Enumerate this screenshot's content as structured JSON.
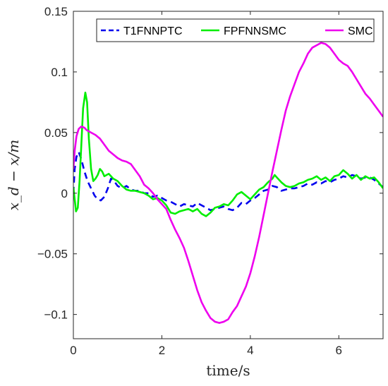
{
  "chart_data": {
    "type": "line",
    "title": "",
    "xlabel": "time/s",
    "ylabel": "x_d − x/m",
    "xlim": [
      0,
      7
    ],
    "ylim": [
      -0.12,
      0.15
    ],
    "xticks": [
      0,
      2,
      4,
      6
    ],
    "xtick_labels": [
      "0",
      "2",
      "4",
      "6"
    ],
    "yticks": [
      -0.1,
      -0.05,
      0,
      0.05,
      0.1,
      0.15
    ],
    "ytick_labels": [
      "−0.1",
      "−0.05",
      "0",
      "0.05",
      "0.1",
      "0.15"
    ],
    "grid": false,
    "legend_position": "top",
    "series": [
      {
        "name": "T1FNNPTC",
        "color": "#0000ee",
        "style": "dashed",
        "points": [
          [
            0,
            0.0
          ],
          [
            0.03,
            0.02
          ],
          [
            0.07,
            0.03
          ],
          [
            0.12,
            0.034
          ],
          [
            0.18,
            0.028
          ],
          [
            0.25,
            0.018
          ],
          [
            0.32,
            0.01
          ],
          [
            0.4,
            0.004
          ],
          [
            0.48,
            -0.002
          ],
          [
            0.55,
            -0.005
          ],
          [
            0.62,
            -0.006
          ],
          [
            0.7,
            -0.003
          ],
          [
            0.78,
            0.004
          ],
          [
            0.85,
            0.012
          ],
          [
            0.92,
            0.01
          ],
          [
            1.0,
            0.006
          ],
          [
            1.1,
            0.004
          ],
          [
            1.2,
            0.006
          ],
          [
            1.3,
            0.003
          ],
          [
            1.4,
            0.002
          ],
          [
            1.5,
            0.002
          ],
          [
            1.6,
            0.0
          ],
          [
            1.7,
            0.0
          ],
          [
            1.8,
            -0.003
          ],
          [
            1.9,
            -0.002
          ],
          [
            2.0,
            -0.004
          ],
          [
            2.1,
            -0.006
          ],
          [
            2.2,
            -0.007
          ],
          [
            2.3,
            -0.009
          ],
          [
            2.4,
            -0.011
          ],
          [
            2.5,
            -0.009
          ],
          [
            2.6,
            -0.01
          ],
          [
            2.7,
            -0.011
          ],
          [
            2.8,
            -0.008
          ],
          [
            2.9,
            -0.01
          ],
          [
            3.0,
            -0.012
          ],
          [
            3.1,
            -0.014
          ],
          [
            3.2,
            -0.013
          ],
          [
            3.3,
            -0.012
          ],
          [
            3.4,
            -0.011
          ],
          [
            3.5,
            -0.013
          ],
          [
            3.6,
            -0.014
          ],
          [
            3.7,
            -0.012
          ],
          [
            3.8,
            -0.008
          ],
          [
            3.9,
            -0.009
          ],
          [
            4.0,
            -0.006
          ],
          [
            4.1,
            -0.004
          ],
          [
            4.2,
            -0.001
          ],
          [
            4.3,
            0.002
          ],
          [
            4.4,
            0.003
          ],
          [
            4.5,
            0.006
          ],
          [
            4.6,
            0.005
          ],
          [
            4.7,
            0.002
          ],
          [
            4.8,
            0.003
          ],
          [
            4.9,
            0.004
          ],
          [
            5.0,
            0.004
          ],
          [
            5.1,
            0.005
          ],
          [
            5.2,
            0.006
          ],
          [
            5.3,
            0.008
          ],
          [
            5.4,
            0.007
          ],
          [
            5.5,
            0.009
          ],
          [
            5.6,
            0.008
          ],
          [
            5.7,
            0.01
          ],
          [
            5.8,
            0.009
          ],
          [
            5.9,
            0.011
          ],
          [
            6.0,
            0.012
          ],
          [
            6.1,
            0.014
          ],
          [
            6.2,
            0.013
          ],
          [
            6.3,
            0.015
          ],
          [
            6.4,
            0.014
          ],
          [
            6.5,
            0.012
          ],
          [
            6.6,
            0.013
          ],
          [
            6.7,
            0.013
          ],
          [
            6.8,
            0.011
          ],
          [
            6.9,
            0.008
          ],
          [
            7.0,
            0.005
          ]
        ]
      },
      {
        "name": "FPFNNSMC",
        "color": "#00ee00",
        "style": "solid",
        "points": [
          [
            0,
            0.005
          ],
          [
            0.03,
            -0.005
          ],
          [
            0.06,
            -0.015
          ],
          [
            0.1,
            -0.012
          ],
          [
            0.14,
            0.01
          ],
          [
            0.18,
            0.04
          ],
          [
            0.22,
            0.07
          ],
          [
            0.27,
            0.083
          ],
          [
            0.31,
            0.075
          ],
          [
            0.35,
            0.045
          ],
          [
            0.4,
            0.02
          ],
          [
            0.45,
            0.01
          ],
          [
            0.5,
            0.012
          ],
          [
            0.55,
            0.015
          ],
          [
            0.6,
            0.02
          ],
          [
            0.65,
            0.018
          ],
          [
            0.7,
            0.014
          ],
          [
            0.8,
            0.016
          ],
          [
            0.9,
            0.012
          ],
          [
            1.0,
            0.01
          ],
          [
            1.1,
            0.006
          ],
          [
            1.2,
            0.003
          ],
          [
            1.3,
            0.002
          ],
          [
            1.4,
            0.002
          ],
          [
            1.5,
            0.001
          ],
          [
            1.6,
            0.0
          ],
          [
            1.7,
            -0.002
          ],
          [
            1.8,
            -0.005
          ],
          [
            1.9,
            -0.004
          ],
          [
            2.0,
            -0.006
          ],
          [
            2.1,
            -0.01
          ],
          [
            2.2,
            -0.016
          ],
          [
            2.3,
            -0.017
          ],
          [
            2.4,
            -0.015
          ],
          [
            2.5,
            -0.014
          ],
          [
            2.6,
            -0.013
          ],
          [
            2.7,
            -0.015
          ],
          [
            2.8,
            -0.013
          ],
          [
            2.9,
            -0.017
          ],
          [
            3.0,
            -0.019
          ],
          [
            3.1,
            -0.016
          ],
          [
            3.2,
            -0.012
          ],
          [
            3.3,
            -0.011
          ],
          [
            3.4,
            -0.009
          ],
          [
            3.5,
            -0.01
          ],
          [
            3.6,
            -0.006
          ],
          [
            3.7,
            -0.001
          ],
          [
            3.8,
            0.001
          ],
          [
            3.9,
            -0.002
          ],
          [
            4.0,
            -0.005
          ],
          [
            4.1,
            -0.001
          ],
          [
            4.2,
            0.003
          ],
          [
            4.3,
            0.005
          ],
          [
            4.4,
            0.009
          ],
          [
            4.5,
            0.012
          ],
          [
            4.55,
            0.015
          ],
          [
            4.6,
            0.013
          ],
          [
            4.7,
            0.009
          ],
          [
            4.8,
            0.006
          ],
          [
            4.9,
            0.005
          ],
          [
            5.0,
            0.006
          ],
          [
            5.1,
            0.008
          ],
          [
            5.2,
            0.009
          ],
          [
            5.3,
            0.011
          ],
          [
            5.4,
            0.012
          ],
          [
            5.5,
            0.014
          ],
          [
            5.6,
            0.011
          ],
          [
            5.7,
            0.013
          ],
          [
            5.8,
            0.01
          ],
          [
            5.9,
            0.014
          ],
          [
            6.0,
            0.015
          ],
          [
            6.1,
            0.019
          ],
          [
            6.2,
            0.016
          ],
          [
            6.3,
            0.012
          ],
          [
            6.4,
            0.015
          ],
          [
            6.5,
            0.011
          ],
          [
            6.6,
            0.014
          ],
          [
            6.7,
            0.012
          ],
          [
            6.8,
            0.013
          ],
          [
            6.9,
            0.009
          ],
          [
            7.0,
            0.004
          ]
        ]
      },
      {
        "name": "SMC",
        "color": "#ee00ee",
        "style": "solid",
        "points": [
          [
            0,
            0.02
          ],
          [
            0.03,
            0.035
          ],
          [
            0.07,
            0.047
          ],
          [
            0.12,
            0.053
          ],
          [
            0.18,
            0.055
          ],
          [
            0.25,
            0.054
          ],
          [
            0.3,
            0.052
          ],
          [
            0.4,
            0.05
          ],
          [
            0.5,
            0.048
          ],
          [
            0.6,
            0.045
          ],
          [
            0.7,
            0.04
          ],
          [
            0.8,
            0.035
          ],
          [
            0.9,
            0.032
          ],
          [
            1.0,
            0.029
          ],
          [
            1.1,
            0.027
          ],
          [
            1.2,
            0.026
          ],
          [
            1.3,
            0.024
          ],
          [
            1.4,
            0.019
          ],
          [
            1.5,
            0.014
          ],
          [
            1.6,
            0.007
          ],
          [
            1.7,
            0.004
          ],
          [
            1.8,
            0.0
          ],
          [
            1.9,
            -0.005
          ],
          [
            2.0,
            -0.009
          ],
          [
            2.1,
            -0.013
          ],
          [
            2.2,
            -0.022
          ],
          [
            2.3,
            -0.03
          ],
          [
            2.4,
            -0.037
          ],
          [
            2.5,
            -0.045
          ],
          [
            2.6,
            -0.056
          ],
          [
            2.7,
            -0.068
          ],
          [
            2.8,
            -0.08
          ],
          [
            2.9,
            -0.09
          ],
          [
            3.0,
            -0.097
          ],
          [
            3.1,
            -0.103
          ],
          [
            3.2,
            -0.106
          ],
          [
            3.3,
            -0.107
          ],
          [
            3.4,
            -0.106
          ],
          [
            3.5,
            -0.104
          ],
          [
            3.6,
            -0.098
          ],
          [
            3.7,
            -0.093
          ],
          [
            3.8,
            -0.085
          ],
          [
            3.9,
            -0.077
          ],
          [
            4.0,
            -0.066
          ],
          [
            4.1,
            -0.052
          ],
          [
            4.2,
            -0.036
          ],
          [
            4.3,
            -0.018
          ],
          [
            4.4,
            0.0
          ],
          [
            4.5,
            0.018
          ],
          [
            4.6,
            0.035
          ],
          [
            4.7,
            0.052
          ],
          [
            4.8,
            0.068
          ],
          [
            4.9,
            0.08
          ],
          [
            5.0,
            0.09
          ],
          [
            5.1,
            0.1
          ],
          [
            5.2,
            0.107
          ],
          [
            5.3,
            0.115
          ],
          [
            5.4,
            0.12
          ],
          [
            5.5,
            0.122
          ],
          [
            5.6,
            0.124
          ],
          [
            5.7,
            0.123
          ],
          [
            5.8,
            0.12
          ],
          [
            5.9,
            0.115
          ],
          [
            6.0,
            0.11
          ],
          [
            6.1,
            0.107
          ],
          [
            6.2,
            0.105
          ],
          [
            6.3,
            0.1
          ],
          [
            6.4,
            0.094
          ],
          [
            6.5,
            0.088
          ],
          [
            6.6,
            0.082
          ],
          [
            6.7,
            0.078
          ],
          [
            6.8,
            0.073
          ],
          [
            6.9,
            0.068
          ],
          [
            7.0,
            0.063
          ]
        ]
      }
    ]
  }
}
